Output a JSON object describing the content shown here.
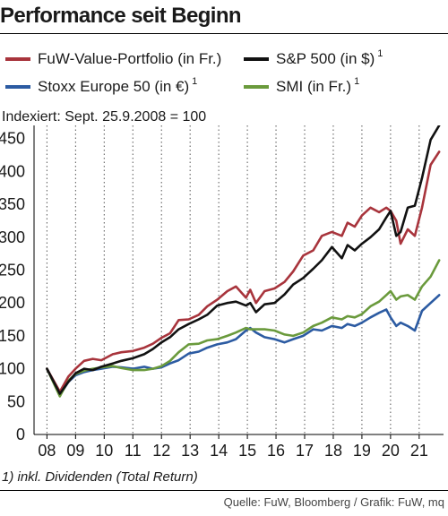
{
  "chart_data": {
    "type": "line",
    "title": "Performance seit Beginn",
    "subtitle": "Indexiert: Sept. 25.9.2008 = 100",
    "footnote": "1) inkl. Dividenden (Total Return)",
    "source": "Quelle: FuW, Bloomberg / Grafik: FuW, mq",
    "xlabel": "",
    "ylabel": "",
    "ylim": [
      0,
      470
    ],
    "xlim": [
      2007.55,
      2021.85
    ],
    "yticks": [
      0,
      50,
      100,
      150,
      200,
      250,
      300,
      350,
      400,
      450
    ],
    "xticks": [
      {
        "v": 2008,
        "label": "08"
      },
      {
        "v": 2009,
        "label": "09"
      },
      {
        "v": 2010,
        "label": "10"
      },
      {
        "v": 2011,
        "label": "11"
      },
      {
        "v": 2012,
        "label": "12"
      },
      {
        "v": 2013,
        "label": "13"
      },
      {
        "v": 2014,
        "label": "14"
      },
      {
        "v": 2015,
        "label": "15"
      },
      {
        "v": 2016,
        "label": "16"
      },
      {
        "v": 2017,
        "label": "17"
      },
      {
        "v": 2018,
        "label": "18"
      },
      {
        "v": 2019,
        "label": "19"
      },
      {
        "v": 2020,
        "label": "20"
      },
      {
        "v": 2021,
        "label": "21"
      }
    ],
    "grid": "vertical-dotted",
    "legend_position": "top",
    "series": [
      {
        "name": "FuW-Value-Portfolio (in Fr.)",
        "superscript": "",
        "color": "#a8343c",
        "x": [
          2008.0,
          2008.45,
          2008.75,
          2009.0,
          2009.3,
          2009.6,
          2009.9,
          2010.3,
          2010.6,
          2011.0,
          2011.4,
          2011.7,
          2012.0,
          2012.3,
          2012.6,
          2012.95,
          2013.3,
          2013.6,
          2013.95,
          2014.3,
          2014.6,
          2014.95,
          2015.1,
          2015.3,
          2015.6,
          2015.95,
          2016.3,
          2016.6,
          2016.95,
          2017.3,
          2017.6,
          2017.95,
          2018.3,
          2018.5,
          2018.75,
          2019.0,
          2019.3,
          2019.6,
          2019.85,
          2020.0,
          2020.2,
          2020.35,
          2020.6,
          2020.85,
          2021.1,
          2021.4,
          2021.7
        ],
        "values": [
          100,
          65,
          88,
          100,
          112,
          115,
          113,
          122,
          125,
          127,
          132,
          138,
          147,
          154,
          174,
          175,
          182,
          195,
          205,
          218,
          225,
          208,
          220,
          200,
          218,
          222,
          232,
          248,
          272,
          280,
          302,
          308,
          302,
          322,
          316,
          333,
          345,
          338,
          345,
          340,
          325,
          290,
          312,
          302,
          345,
          410,
          430
        ]
      },
      {
        "name": "S&P 500 (in $)",
        "superscript": "1",
        "color": "#111111",
        "x": [
          2008.0,
          2008.45,
          2008.75,
          2009.0,
          2009.3,
          2009.6,
          2009.9,
          2010.3,
          2010.6,
          2011.0,
          2011.4,
          2011.7,
          2012.0,
          2012.3,
          2012.6,
          2012.95,
          2013.3,
          2013.6,
          2013.95,
          2014.3,
          2014.6,
          2014.95,
          2015.1,
          2015.3,
          2015.6,
          2015.95,
          2016.3,
          2016.6,
          2016.95,
          2017.3,
          2017.6,
          2017.95,
          2018.3,
          2018.5,
          2018.75,
          2019.0,
          2019.3,
          2019.6,
          2019.85,
          2020.0,
          2020.2,
          2020.35,
          2020.6,
          2020.85,
          2021.1,
          2021.4,
          2021.7
        ],
        "values": [
          100,
          62,
          80,
          93,
          100,
          98,
          103,
          108,
          112,
          116,
          122,
          130,
          140,
          148,
          160,
          168,
          175,
          182,
          196,
          200,
          202,
          196,
          200,
          186,
          198,
          200,
          213,
          228,
          238,
          252,
          265,
          285,
          268,
          288,
          280,
          290,
          300,
          312,
          330,
          340,
          302,
          308,
          345,
          348,
          390,
          448,
          470
        ]
      },
      {
        "name": "Stoxx Europe 50 (in €)",
        "superscript": "1",
        "color": "#2c5ba2",
        "x": [
          2008.0,
          2008.45,
          2008.75,
          2009.0,
          2009.3,
          2009.6,
          2009.9,
          2010.3,
          2010.6,
          2011.0,
          2011.4,
          2011.7,
          2012.0,
          2012.3,
          2012.6,
          2012.95,
          2013.3,
          2013.6,
          2013.95,
          2014.3,
          2014.6,
          2014.95,
          2015.1,
          2015.3,
          2015.6,
          2015.95,
          2016.3,
          2016.6,
          2016.95,
          2017.3,
          2017.6,
          2017.95,
          2018.3,
          2018.5,
          2018.75,
          2019.0,
          2019.3,
          2019.6,
          2019.85,
          2020.0,
          2020.2,
          2020.35,
          2020.6,
          2020.85,
          2021.1,
          2021.4,
          2021.7
        ],
        "values": [
          100,
          60,
          80,
          90,
          95,
          98,
          100,
          103,
          102,
          100,
          103,
          100,
          102,
          108,
          113,
          123,
          126,
          132,
          137,
          140,
          145,
          158,
          162,
          155,
          148,
          145,
          140,
          145,
          150,
          160,
          158,
          165,
          162,
          168,
          165,
          170,
          178,
          185,
          190,
          178,
          165,
          170,
          165,
          158,
          188,
          200,
          212
        ]
      },
      {
        "name": "SMI (in Fr.)",
        "superscript": "1",
        "color": "#6a9a3c",
        "x": [
          2008.0,
          2008.45,
          2008.75,
          2009.0,
          2009.3,
          2009.6,
          2009.9,
          2010.3,
          2010.6,
          2011.0,
          2011.4,
          2011.7,
          2012.0,
          2012.3,
          2012.6,
          2012.95,
          2013.3,
          2013.6,
          2013.95,
          2014.3,
          2014.6,
          2014.95,
          2015.1,
          2015.3,
          2015.6,
          2015.95,
          2016.3,
          2016.6,
          2016.95,
          2017.3,
          2017.6,
          2017.95,
          2018.3,
          2018.5,
          2018.75,
          2019.0,
          2019.3,
          2019.6,
          2019.85,
          2020.0,
          2020.2,
          2020.35,
          2020.6,
          2020.85,
          2021.1,
          2021.4,
          2021.7
        ],
        "values": [
          100,
          58,
          82,
          92,
          97,
          100,
          102,
          104,
          101,
          98,
          98,
          100,
          104,
          112,
          125,
          137,
          138,
          143,
          145,
          150,
          155,
          162,
          160,
          160,
          160,
          158,
          152,
          150,
          155,
          165,
          170,
          178,
          175,
          180,
          178,
          183,
          195,
          202,
          212,
          218,
          205,
          210,
          212,
          205,
          225,
          240,
          265
        ]
      }
    ]
  }
}
